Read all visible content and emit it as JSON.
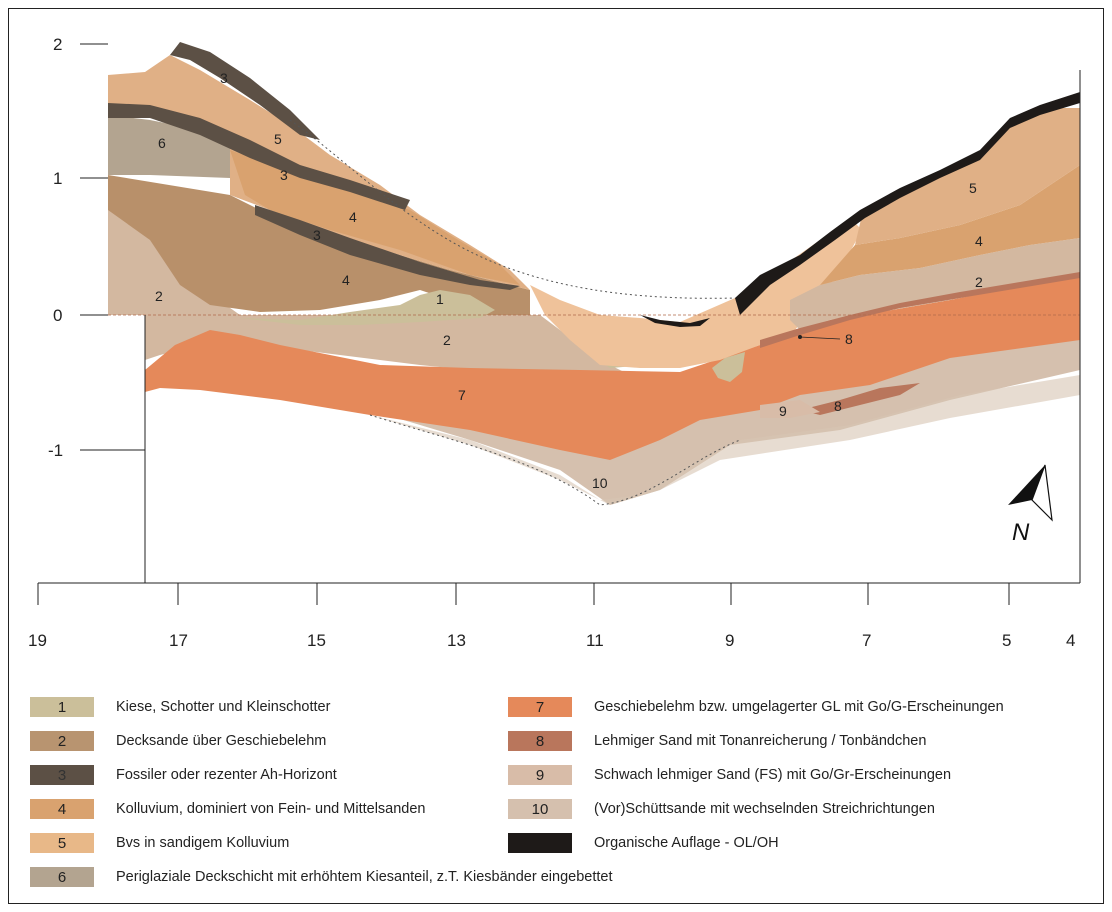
{
  "axes": {
    "y_ticks": [
      "2",
      "1",
      "0",
      "-1"
    ],
    "x_ticks": [
      "19",
      "17",
      "15",
      "13",
      "11",
      "9",
      "7",
      "5",
      "4"
    ]
  },
  "unit_labels": [
    "1",
    "2",
    "3",
    "3",
    "3",
    "4",
    "4",
    "5",
    "6",
    "7",
    "8",
    "8",
    "9",
    "10",
    "2",
    "4",
    "5"
  ],
  "north_label": "N",
  "legend": {
    "left": [
      {
        "code": "1",
        "text": "Kiese, Schotter und Kleinschotter",
        "color": "#cbbf9a"
      },
      {
        "code": "2",
        "text": "Decksande über Geschiebelehm",
        "color": "#b89470"
      },
      {
        "code": "3",
        "text": "Fossiler oder rezenter Ah-Horizont",
        "color": "#5c5045"
      },
      {
        "code": "4",
        "text": "Kolluvium, dominiert von Fein- und Mittelsanden",
        "color": "#d9a26f"
      },
      {
        "code": "5",
        "text": "Bvs in sandigem Kolluvium",
        "color": "#e8b888"
      },
      {
        "code": "6",
        "text": "Periglaziale Deckschicht mit erhöhtem Kiesanteil, z.T. Kiesbänder eingebettet",
        "color": "#b3a490"
      }
    ],
    "right": [
      {
        "code": "7",
        "text": "Geschiebelehm bzw. umgelagerter GL mit Go/G-Erscheinungen",
        "color": "#e5895a"
      },
      {
        "code": "8",
        "text": "Lehmiger Sand mit Tonanreicherung / Tonbändchen",
        "color": "#b9765c"
      },
      {
        "code": "9",
        "text": "Schwach lehmiger Sand (FS) mit Go/Gr-Erscheinungen",
        "color": "#d8bca8"
      },
      {
        "code": "10",
        "text": "(Vor)Schüttsande mit wechselnden Streichrichtungen",
        "color": "#d5c0ae"
      },
      {
        "code": "",
        "text": "Organische Auflage - OL/OH",
        "color": "#1e1a18"
      }
    ]
  }
}
